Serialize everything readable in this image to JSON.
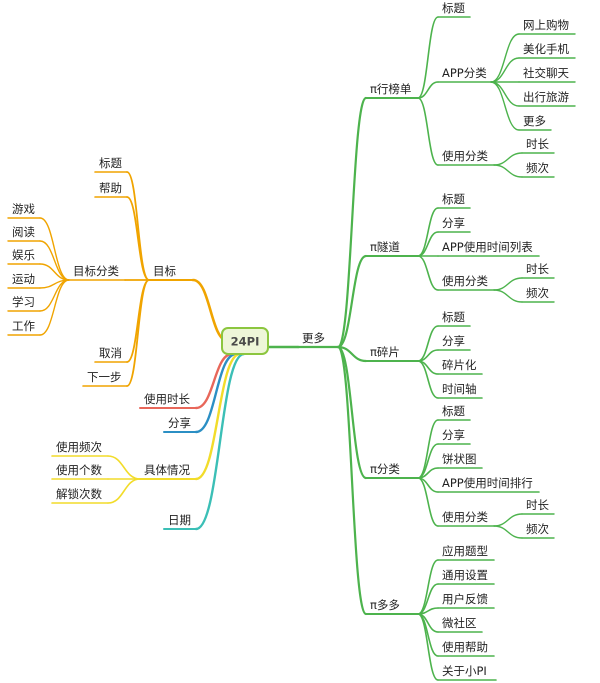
{
  "root": "24PI",
  "colors": {
    "green": "#4db34d",
    "orange": "#f0a400",
    "red": "#e8675a",
    "blue": "#2b8fc4",
    "yellow": "#f2dc2a",
    "teal": "#3bbfb6"
  },
  "right": {
    "label": "更多",
    "branches": [
      {
        "label": "π行榜单",
        "children": [
          {
            "label": "标题"
          },
          {
            "label": "APP分类",
            "children": [
              {
                "label": "网上购物"
              },
              {
                "label": "美化手机"
              },
              {
                "label": "社交聊天"
              },
              {
                "label": "出行旅游"
              },
              {
                "label": "更多"
              }
            ]
          },
          {
            "label": "使用分类",
            "children": [
              {
                "label": "时长"
              },
              {
                "label": "频次"
              }
            ]
          }
        ]
      },
      {
        "label": "π隧道",
        "children": [
          {
            "label": "标题"
          },
          {
            "label": "分享"
          },
          {
            "label": "APP使用时间列表"
          },
          {
            "label": "使用分类",
            "children": [
              {
                "label": "时长"
              },
              {
                "label": "频次"
              }
            ]
          }
        ]
      },
      {
        "label": "π碎片",
        "children": [
          {
            "label": "标题"
          },
          {
            "label": "分享"
          },
          {
            "label": "碎片化"
          },
          {
            "label": "时间轴"
          }
        ]
      },
      {
        "label": "π分类",
        "children": [
          {
            "label": "标题"
          },
          {
            "label": "分享"
          },
          {
            "label": "饼状图"
          },
          {
            "label": "APP使用时间排行"
          },
          {
            "label": "使用分类",
            "children": [
              {
                "label": "时长"
              },
              {
                "label": "频次"
              }
            ]
          }
        ]
      },
      {
        "label": "π多多",
        "children": [
          {
            "label": "应用题型"
          },
          {
            "label": "通用设置"
          },
          {
            "label": "用户反馈"
          },
          {
            "label": "微社区"
          },
          {
            "label": "使用帮助"
          },
          {
            "label": "关于小PI"
          }
        ]
      }
    ]
  },
  "left": {
    "target": {
      "label": "目标",
      "children": [
        {
          "label": "标题"
        },
        {
          "label": "帮助"
        },
        {
          "label": "目标分类",
          "children": [
            {
              "label": "游戏"
            },
            {
              "label": "阅读"
            },
            {
              "label": "娱乐"
            },
            {
              "label": "运动"
            },
            {
              "label": "学习"
            },
            {
              "label": "工作"
            }
          ]
        },
        {
          "label": "取消"
        },
        {
          "label": "下一步"
        }
      ]
    },
    "usage_time": "使用时长",
    "share": "分享",
    "details": {
      "label": "具体情况",
      "children": [
        {
          "label": "使用频次"
        },
        {
          "label": "使用个数"
        },
        {
          "label": "解锁次数"
        }
      ]
    },
    "date": "日期"
  }
}
